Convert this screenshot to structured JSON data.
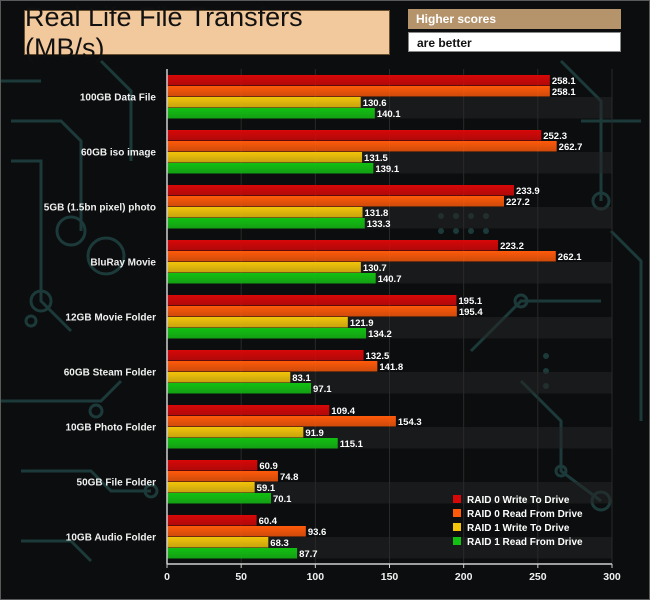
{
  "header": {
    "note_line1": "Higher scores",
    "note_line2": "are better"
  },
  "colors": {
    "raid0_write": "#d80808",
    "raid0_read": "#ff5a0a",
    "raid1_write": "#f2c40a",
    "raid1_read": "#12c012",
    "title_bg": "#f2c89d"
  },
  "chart_data": {
    "type": "bar",
    "orientation": "horizontal",
    "title": "Real Life File Transfers (MB/s)",
    "categories": [
      "100GB Data File",
      "60GB iso image",
      "5GB (1.5bn pixel) photo",
      "BluRay Movie",
      "12GB Movie Folder",
      "60GB Steam Folder",
      "10GB Photo Folder",
      "50GB File Folder",
      "10GB Audio Folder"
    ],
    "series": [
      {
        "name": "RAID 0 Write To  Drive",
        "values": [
          258.1,
          252.3,
          233.9,
          223.2,
          195.1,
          132.5,
          109.4,
          60.9,
          60.4
        ]
      },
      {
        "name": "RAID 0 Read From  Drive",
        "values": [
          258.1,
          262.7,
          227.2,
          262.1,
          195.4,
          141.8,
          154.3,
          74.8,
          93.6
        ]
      },
      {
        "name": "RAID 1 Write To Drive",
        "values": [
          130.6,
          131.5,
          131.8,
          130.7,
          121.9,
          83.1,
          91.9,
          59.1,
          68.3
        ]
      },
      {
        "name": "RAID 1 Read From Drive",
        "values": [
          140.1,
          139.1,
          133.3,
          140.7,
          134.2,
          97.1,
          115.1,
          70.1,
          87.7
        ]
      }
    ],
    "xlim": [
      0,
      300
    ],
    "xticks": [
      "0",
      "50",
      "100",
      "150",
      "200",
      "250",
      "300"
    ],
    "legend_position": "bottom-right"
  }
}
